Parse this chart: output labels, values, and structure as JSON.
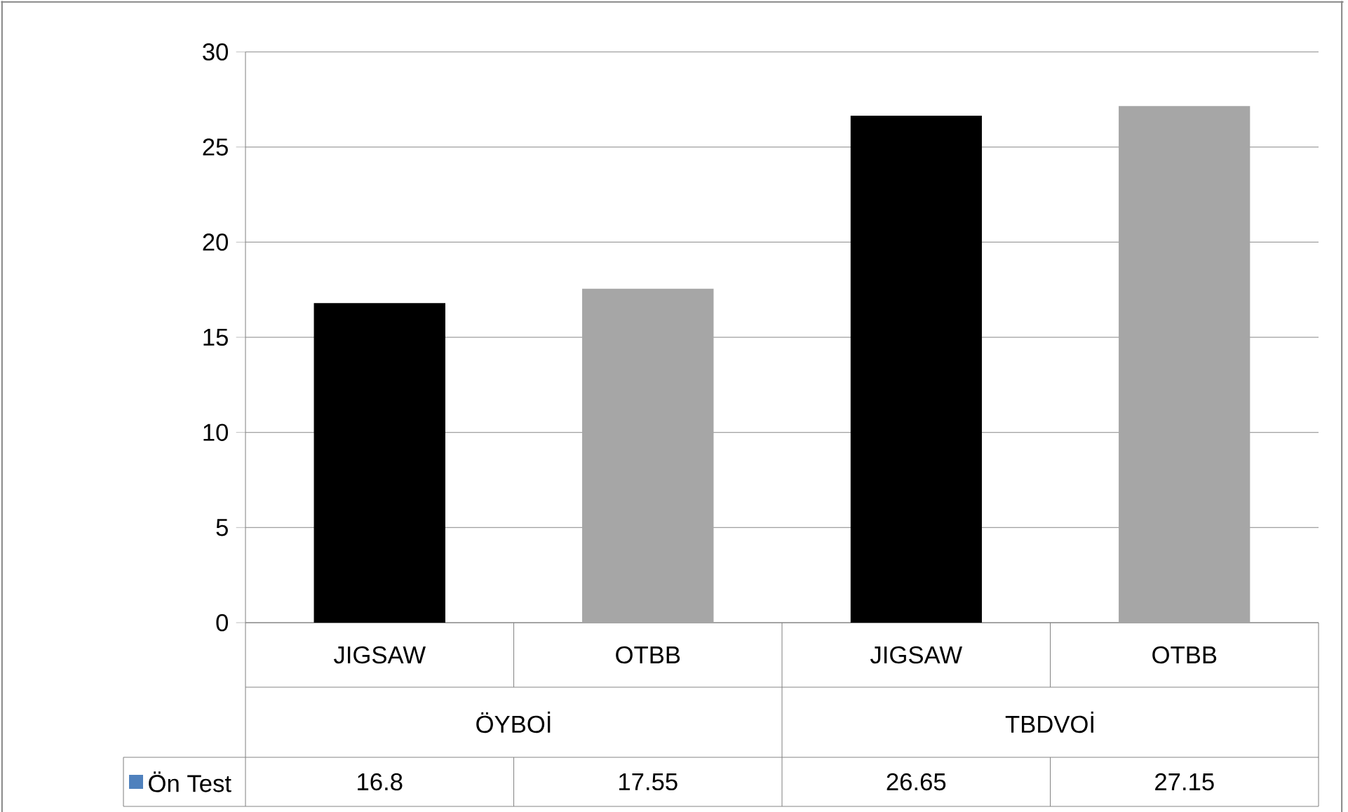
{
  "chart_data": {
    "type": "bar",
    "categories": [
      "JIGSAW",
      "OTBB",
      "JIGSAW",
      "OTBB"
    ],
    "annotations": [
      "ÖYBOİ",
      "TBDVOİ"
    ],
    "series": [
      {
        "name": "Ön Test",
        "color": "#4f81bd",
        "colors": [
          "#000000",
          "#a6a6a6",
          "#000000",
          "#a6a6a6"
        ],
        "values": [
          16.8,
          17.55,
          26.65,
          27.15
        ]
      }
    ],
    "ylim": [
      0,
      30
    ],
    "yticks": [
      0,
      5,
      10,
      15,
      20,
      25,
      30
    ],
    "grid": "y",
    "data_labels": true,
    "legend": "bottom left"
  }
}
